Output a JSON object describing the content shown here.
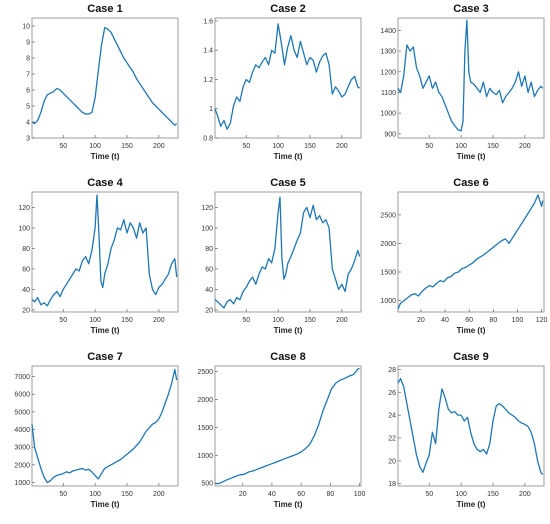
{
  "chart_data": [
    {
      "type": "line",
      "title": "Case 1",
      "xlabel": "Time (t)",
      "xlim": [
        1,
        230
      ],
      "ylim": [
        3,
        10.5
      ],
      "xticks": [
        50,
        100,
        150,
        200
      ],
      "yticks": [
        3,
        4,
        5,
        6,
        7,
        8,
        9,
        10
      ],
      "series": [
        {
          "color": "#1f77b4",
          "x": [
            1,
            5,
            10,
            15,
            20,
            25,
            30,
            35,
            40,
            45,
            50,
            55,
            60,
            65,
            70,
            75,
            80,
            85,
            90,
            95,
            100,
            105,
            110,
            115,
            120,
            125,
            130,
            135,
            140,
            145,
            150,
            155,
            160,
            165,
            170,
            175,
            180,
            185,
            190,
            195,
            200,
            205,
            210,
            215,
            220,
            225,
            228
          ],
          "y": [
            4.0,
            3.9,
            4.1,
            4.6,
            5.3,
            5.7,
            5.8,
            5.9,
            6.1,
            6.0,
            5.8,
            5.6,
            5.4,
            5.2,
            5.0,
            4.8,
            4.6,
            4.5,
            4.5,
            4.6,
            5.5,
            7.2,
            8.8,
            9.9,
            9.8,
            9.6,
            9.2,
            8.8,
            8.4,
            8.0,
            7.7,
            7.4,
            7.1,
            6.7,
            6.4,
            6.1,
            5.8,
            5.5,
            5.2,
            5.0,
            4.8,
            4.6,
            4.4,
            4.2,
            4.0,
            3.8,
            3.9
          ]
        }
      ]
    },
    {
      "type": "line",
      "title": "Case 2",
      "xlabel": "Time (t)",
      "xlim": [
        1,
        230
      ],
      "ylim": [
        0.8,
        1.62
      ],
      "xticks": [
        50,
        100,
        150,
        200
      ],
      "yticks": [
        0.8,
        1.0,
        1.2,
        1.4,
        1.6
      ],
      "series": [
        {
          "color": "#1f77b4",
          "x": [
            1,
            5,
            10,
            15,
            20,
            25,
            30,
            35,
            40,
            45,
            50,
            55,
            60,
            65,
            70,
            75,
            80,
            85,
            90,
            95,
            100,
            105,
            110,
            115,
            120,
            125,
            130,
            135,
            140,
            145,
            150,
            155,
            160,
            165,
            170,
            175,
            180,
            185,
            190,
            195,
            200,
            205,
            210,
            215,
            220,
            225,
            228
          ],
          "y": [
            1.0,
            0.95,
            0.88,
            0.92,
            0.86,
            0.9,
            1.02,
            1.08,
            1.05,
            1.15,
            1.2,
            1.18,
            1.25,
            1.3,
            1.28,
            1.32,
            1.35,
            1.3,
            1.4,
            1.38,
            1.58,
            1.45,
            1.3,
            1.42,
            1.5,
            1.4,
            1.35,
            1.46,
            1.38,
            1.3,
            1.35,
            1.33,
            1.25,
            1.32,
            1.36,
            1.38,
            1.3,
            1.1,
            1.15,
            1.12,
            1.08,
            1.1,
            1.15,
            1.2,
            1.22,
            1.15,
            1.14
          ]
        }
      ]
    },
    {
      "type": "line",
      "title": "Case 3",
      "xlabel": "Time (t)",
      "xlim": [
        1,
        230
      ],
      "ylim": [
        880,
        1460
      ],
      "xticks": [
        50,
        100,
        150,
        200
      ],
      "yticks": [
        900,
        1000,
        1100,
        1200,
        1300,
        1400
      ],
      "series": [
        {
          "color": "#1f77b4",
          "x": [
            1,
            5,
            10,
            15,
            20,
            25,
            30,
            35,
            40,
            45,
            50,
            55,
            60,
            65,
            70,
            75,
            80,
            85,
            90,
            95,
            100,
            103,
            106,
            109,
            112,
            115,
            120,
            125,
            130,
            135,
            140,
            145,
            150,
            155,
            160,
            165,
            170,
            175,
            180,
            185,
            190,
            195,
            200,
            205,
            210,
            215,
            220,
            225,
            228
          ],
          "y": [
            1120,
            1100,
            1180,
            1330,
            1300,
            1320,
            1220,
            1180,
            1120,
            1150,
            1180,
            1120,
            1150,
            1100,
            1080,
            1040,
            1000,
            960,
            940,
            920,
            915,
            960,
            1300,
            1450,
            1200,
            1150,
            1140,
            1120,
            1100,
            1150,
            1080,
            1120,
            1100,
            1090,
            1110,
            1050,
            1080,
            1100,
            1120,
            1150,
            1200,
            1130,
            1180,
            1100,
            1150,
            1080,
            1110,
            1130,
            1120
          ]
        }
      ]
    },
    {
      "type": "line",
      "title": "Case 4",
      "xlabel": "Time (t)",
      "xlim": [
        1,
        230
      ],
      "ylim": [
        18,
        135
      ],
      "xticks": [
        50,
        100,
        150,
        200
      ],
      "yticks": [
        20,
        40,
        60,
        80,
        100,
        120
      ],
      "series": [
        {
          "color": "#1f77b4",
          "x": [
            1,
            5,
            10,
            15,
            20,
            25,
            30,
            35,
            40,
            45,
            50,
            55,
            60,
            65,
            70,
            75,
            80,
            85,
            90,
            95,
            100,
            103,
            106,
            109,
            112,
            115,
            120,
            125,
            130,
            135,
            140,
            145,
            150,
            155,
            160,
            165,
            170,
            175,
            180,
            185,
            190,
            195,
            200,
            205,
            210,
            215,
            220,
            225,
            228
          ],
          "y": [
            30,
            28,
            32,
            25,
            27,
            24,
            30,
            35,
            38,
            33,
            40,
            45,
            50,
            55,
            60,
            58,
            68,
            72,
            65,
            78,
            100,
            132,
            95,
            48,
            42,
            55,
            65,
            80,
            88,
            100,
            98,
            108,
            95,
            105,
            100,
            90,
            105,
            95,
            100,
            55,
            40,
            35,
            42,
            45,
            50,
            55,
            65,
            70,
            52
          ]
        }
      ]
    },
    {
      "type": "line",
      "title": "Case 5",
      "xlabel": "Time (t)",
      "xlim": [
        1,
        230
      ],
      "ylim": [
        18,
        135
      ],
      "xticks": [
        50,
        100,
        150,
        200
      ],
      "yticks": [
        20,
        40,
        60,
        80,
        100,
        120
      ],
      "series": [
        {
          "color": "#1f77b4",
          "x": [
            1,
            5,
            10,
            15,
            20,
            25,
            30,
            35,
            40,
            45,
            50,
            55,
            60,
            65,
            70,
            75,
            80,
            85,
            90,
            95,
            100,
            103,
            106,
            109,
            112,
            115,
            120,
            125,
            130,
            135,
            140,
            145,
            150,
            155,
            160,
            165,
            170,
            175,
            180,
            185,
            190,
            195,
            200,
            205,
            210,
            215,
            220,
            225,
            228
          ],
          "y": [
            30,
            28,
            25,
            22,
            28,
            30,
            26,
            32,
            30,
            38,
            42,
            48,
            52,
            45,
            55,
            62,
            60,
            70,
            66,
            80,
            115,
            130,
            70,
            50,
            55,
            65,
            72,
            80,
            88,
            95,
            115,
            120,
            110,
            122,
            108,
            112,
            105,
            108,
            100,
            60,
            50,
            40,
            45,
            38,
            55,
            60,
            68,
            78,
            72
          ]
        }
      ]
    },
    {
      "type": "line",
      "title": "Case 6",
      "xlabel": "Time (t)",
      "xlim": [
        1,
        122
      ],
      "ylim": [
        800,
        2900
      ],
      "xticks": [
        20,
        40,
        60,
        80,
        100,
        120
      ],
      "yticks": [
        1000,
        1500,
        2000,
        2500
      ],
      "series": [
        {
          "color": "#1f77b4",
          "x": [
            1,
            3,
            6,
            9,
            12,
            15,
            18,
            21,
            24,
            27,
            30,
            33,
            36,
            39,
            42,
            45,
            48,
            51,
            54,
            57,
            60,
            63,
            66,
            69,
            72,
            75,
            78,
            81,
            84,
            87,
            90,
            93,
            96,
            99,
            102,
            105,
            108,
            111,
            114,
            117,
            120,
            121
          ],
          "y": [
            850,
            950,
            1000,
            1050,
            1100,
            1120,
            1080,
            1160,
            1220,
            1260,
            1240,
            1300,
            1350,
            1330,
            1400,
            1420,
            1480,
            1500,
            1560,
            1580,
            1620,
            1660,
            1720,
            1760,
            1800,
            1850,
            1900,
            1950,
            2000,
            2050,
            2080,
            2000,
            2100,
            2200,
            2300,
            2400,
            2500,
            2600,
            2700,
            2850,
            2650,
            2750
          ]
        }
      ]
    },
    {
      "type": "line",
      "title": "Case 7",
      "xlabel": "Time (t)",
      "xlim": [
        1,
        230
      ],
      "ylim": [
        800,
        7600
      ],
      "xticks": [
        50,
        100,
        150,
        200
      ],
      "yticks": [
        1000,
        2000,
        3000,
        4000,
        5000,
        6000,
        7000
      ],
      "series": [
        {
          "color": "#1f77b4",
          "x": [
            1,
            5,
            10,
            15,
            20,
            25,
            30,
            35,
            40,
            45,
            50,
            55,
            60,
            65,
            70,
            75,
            80,
            85,
            90,
            95,
            100,
            105,
            110,
            115,
            120,
            125,
            130,
            135,
            140,
            145,
            150,
            155,
            160,
            165,
            170,
            175,
            180,
            185,
            190,
            195,
            200,
            205,
            210,
            215,
            220,
            225,
            228
          ],
          "y": [
            4300,
            3000,
            2400,
            1800,
            1300,
            1000,
            1100,
            1300,
            1400,
            1450,
            1500,
            1600,
            1550,
            1650,
            1700,
            1750,
            1800,
            1700,
            1750,
            1600,
            1400,
            1200,
            1500,
            1800,
            1900,
            2000,
            2100,
            2200,
            2300,
            2450,
            2600,
            2750,
            2900,
            3100,
            3300,
            3600,
            3900,
            4100,
            4300,
            4400,
            4600,
            5000,
            5500,
            6000,
            6600,
            7400,
            6800
          ]
        }
      ]
    },
    {
      "type": "line",
      "title": "Case 8",
      "xlabel": "Time (t)",
      "xlim": [
        1,
        101
      ],
      "ylim": [
        450,
        2600
      ],
      "xticks": [
        20,
        40,
        60,
        80,
        100
      ],
      "yticks": [
        500,
        1000,
        1500,
        2000,
        2500
      ],
      "series": [
        {
          "color": "#1f77b4",
          "x": [
            1,
            3,
            6,
            9,
            12,
            15,
            18,
            21,
            24,
            27,
            30,
            33,
            36,
            39,
            42,
            45,
            48,
            51,
            54,
            57,
            60,
            63,
            66,
            69,
            72,
            75,
            78,
            81,
            84,
            87,
            90,
            93,
            96,
            99,
            100
          ],
          "y": [
            500,
            490,
            520,
            560,
            590,
            620,
            650,
            660,
            700,
            720,
            750,
            780,
            810,
            840,
            870,
            900,
            930,
            960,
            990,
            1020,
            1060,
            1120,
            1200,
            1350,
            1550,
            1800,
            2000,
            2200,
            2300,
            2350,
            2380,
            2420,
            2450,
            2550,
            2560
          ]
        }
      ]
    },
    {
      "type": "line",
      "title": "Case 9",
      "xlabel": "Time (t)",
      "xlim": [
        1,
        230
      ],
      "ylim": [
        17.8,
        28.3
      ],
      "xticks": [
        50,
        100,
        150,
        200
      ],
      "yticks": [
        18,
        20,
        22,
        24,
        26,
        28
      ],
      "series": [
        {
          "color": "#1f77b4",
          "x": [
            1,
            5,
            10,
            15,
            20,
            25,
            30,
            35,
            40,
            45,
            50,
            55,
            60,
            65,
            70,
            75,
            80,
            85,
            90,
            95,
            100,
            105,
            110,
            115,
            120,
            125,
            130,
            135,
            140,
            145,
            150,
            155,
            160,
            165,
            170,
            175,
            180,
            185,
            190,
            195,
            200,
            205,
            210,
            215,
            220,
            225,
            228
          ],
          "y": [
            26.8,
            27.2,
            26.5,
            25.0,
            23.5,
            22.0,
            20.5,
            19.5,
            19.0,
            19.8,
            20.5,
            22.5,
            21.5,
            24.5,
            26.3,
            25.5,
            24.5,
            24.2,
            24.3,
            24.0,
            24.0,
            23.5,
            23.8,
            22.5,
            21.5,
            21.0,
            20.8,
            21.0,
            20.6,
            21.5,
            23.5,
            24.8,
            25.0,
            24.8,
            24.5,
            24.2,
            24.0,
            23.8,
            23.5,
            23.3,
            23.2,
            23.0,
            22.5,
            21.5,
            20.0,
            19.0,
            18.8
          ]
        }
      ]
    }
  ]
}
